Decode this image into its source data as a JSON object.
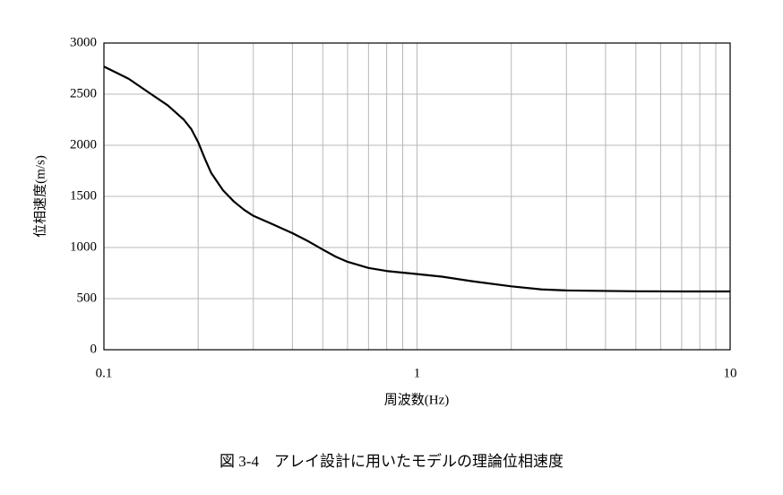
{
  "chart_data": {
    "type": "line",
    "caption": "図 3-4　アレイ設計に用いたモデルの理論位相速度",
    "x_label": "周波数(Hz)",
    "y_label": "位相速度(m/s)",
    "log_x": true,
    "grid": true,
    "color": "#000000",
    "xlim": [
      0.1,
      10
    ],
    "xticks": [
      0.1,
      1,
      10
    ],
    "x_minor_ticks": [
      0.2,
      0.3,
      0.4,
      0.5,
      0.6,
      0.7,
      0.8,
      0.9,
      2,
      3,
      4,
      5,
      6,
      7,
      8,
      9
    ],
    "ylim": [
      0,
      3000
    ],
    "yticks": [
      0,
      500,
      1000,
      1500,
      2000,
      2500,
      3000
    ],
    "x": [
      0.1,
      0.12,
      0.14,
      0.16,
      0.18,
      0.19,
      0.2,
      0.21,
      0.22,
      0.24,
      0.26,
      0.28,
      0.3,
      0.35,
      0.4,
      0.45,
      0.5,
      0.55,
      0.6,
      0.7,
      0.8,
      1,
      1.2,
      1.5,
      2,
      2.5,
      3,
      4,
      5,
      7,
      10
    ],
    "values": [
      2770,
      2650,
      2510,
      2390,
      2250,
      2160,
      2030,
      1870,
      1730,
      1560,
      1450,
      1370,
      1310,
      1220,
      1140,
      1060,
      980,
      910,
      860,
      800,
      770,
      740,
      715,
      670,
      620,
      590,
      580,
      575,
      572,
      570,
      570
    ]
  }
}
